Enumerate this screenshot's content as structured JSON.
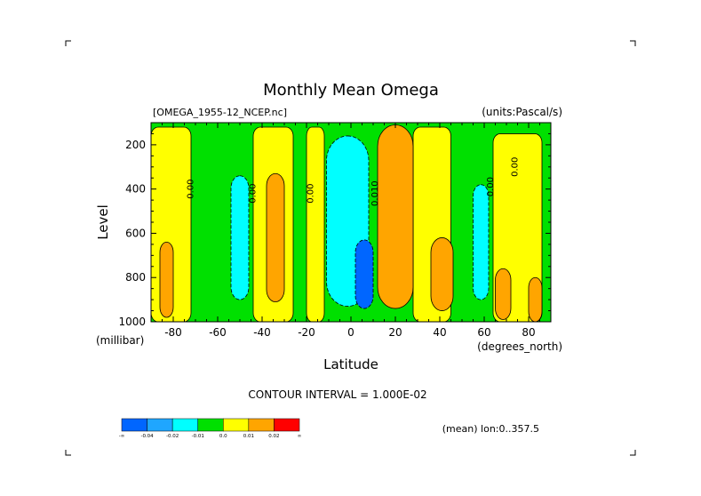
{
  "chart_data": {
    "type": "contour",
    "title": "Monthly Mean Omega",
    "source_file": "[OMEGA_1955-12_NCEP.nc]",
    "units_label": "(units:Pascal/s)",
    "xlabel": "Latitude",
    "x_units": "(degrees_north)",
    "ylabel": "Level",
    "y_units": "(millibar)",
    "xlim": [
      -90,
      90
    ],
    "ylim": [
      1000,
      100
    ],
    "x_ticks": [
      -80,
      -60,
      -40,
      -20,
      0,
      20,
      40,
      60,
      80
    ],
    "y_ticks": [
      200,
      400,
      600,
      800,
      1000
    ],
    "contour_interval_label": "CONTOUR INTERVAL = 1.000E-02",
    "footer_note": "(mean) lon:0..357.5",
    "contour_labels": [
      {
        "lat": -71,
        "level": 400,
        "text": "0.00"
      },
      {
        "lat": -43,
        "level": 420,
        "text": "0.00"
      },
      {
        "lat": -17,
        "level": 420,
        "text": "0.00"
      },
      {
        "lat": 12,
        "level": 420,
        "text": "0.010"
      },
      {
        "lat": 64,
        "level": 390,
        "text": "0.00"
      },
      {
        "lat": 75,
        "level": 300,
        "text": "0.00"
      }
    ],
    "colorbar": {
      "colors": [
        "#0066ff",
        "#1fa6ff",
        "#00ffff",
        "#00e000",
        "#ffff00",
        "#ffa500",
        "#ff0000"
      ],
      "labels": [
        "-∞",
        "-0.04",
        "-0.02",
        "-0.01",
        "0.0",
        "0.01",
        "0.02",
        "∞"
      ]
    },
    "regions": [
      {
        "category": "positive",
        "lat_range": [
          -90,
          -72
        ],
        "level_range": [
          120,
          1000
        ],
        "shape": "band"
      },
      {
        "category": "strong-positive",
        "lat_range": [
          -86,
          -80
        ],
        "level_range": [
          640,
          980
        ],
        "shape": "cell"
      },
      {
        "category": "negative",
        "lat_range": [
          -54,
          -46
        ],
        "level_range": [
          340,
          900
        ],
        "shape": "cell"
      },
      {
        "category": "strong-positive",
        "lat_range": [
          -38,
          -30
        ],
        "level_range": [
          330,
          910
        ],
        "shape": "cell"
      },
      {
        "category": "positive",
        "lat_range": [
          -44,
          -26
        ],
        "level_range": [
          120,
          1000
        ],
        "shape": "band"
      },
      {
        "category": "positive",
        "lat_range": [
          -20,
          -12
        ],
        "level_range": [
          120,
          1000
        ],
        "shape": "band"
      },
      {
        "category": "negative",
        "lat_range": [
          -11,
          8
        ],
        "level_range": [
          160,
          930
        ],
        "shape": "cell"
      },
      {
        "category": "very-negative",
        "lat_range": [
          2,
          10
        ],
        "level_range": [
          630,
          940
        ],
        "shape": "cell"
      },
      {
        "category": "strong-positive",
        "lat_range": [
          12,
          28
        ],
        "level_range": [
          110,
          940
        ],
        "shape": "cell"
      },
      {
        "category": "positive",
        "lat_range": [
          28,
          45
        ],
        "level_range": [
          120,
          1000
        ],
        "shape": "band"
      },
      {
        "category": "strong-positive",
        "lat_range": [
          36,
          46
        ],
        "level_range": [
          620,
          950
        ],
        "shape": "cell"
      },
      {
        "category": "negative",
        "lat_range": [
          55,
          62
        ],
        "level_range": [
          380,
          900
        ],
        "shape": "cell"
      },
      {
        "category": "positive",
        "lat_range": [
          64,
          86
        ],
        "level_range": [
          150,
          1000
        ],
        "shape": "band"
      },
      {
        "category": "strong-positive",
        "lat_range": [
          65,
          72
        ],
        "level_range": [
          760,
          990
        ],
        "shape": "cell"
      },
      {
        "category": "strong-positive",
        "lat_range": [
          80,
          86
        ],
        "level_range": [
          800,
          1000
        ],
        "shape": "cell"
      }
    ]
  }
}
